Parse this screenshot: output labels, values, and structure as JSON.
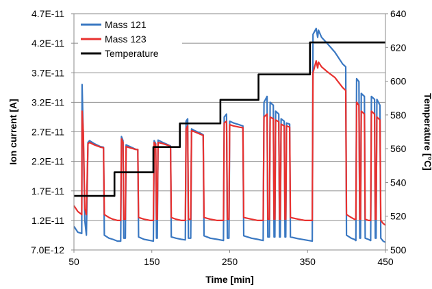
{
  "chart_data": {
    "type": "line",
    "title": "",
    "xlabel": "Time [min]",
    "ylabel": "Ion current [A]",
    "y2label": "Temperature [°C]",
    "xlim": [
      50,
      450
    ],
    "ylim": [
      7e-12,
      4.7e-11
    ],
    "y2lim": [
      500,
      640
    ],
    "x_ticks": [
      "50",
      "150",
      "250",
      "350",
      "450"
    ],
    "x_tick_values": [
      50,
      150,
      250,
      350,
      450
    ],
    "y_ticks": [
      "4.7E-11",
      "4.2E-11",
      "3.7E-11",
      "3.2E-11",
      "2.7E-11",
      "2.2E-11",
      "1.7E-11",
      "1.2E-11",
      "7.0E-12"
    ],
    "y_tick_values": [
      4.7e-11,
      4.2e-11,
      3.7e-11,
      3.2e-11,
      2.7e-11,
      2.2e-11,
      1.7e-11,
      1.2e-11,
      7e-12
    ],
    "y2_ticks": [
      "640",
      "620",
      "600",
      "580",
      "560",
      "540",
      "520",
      "500"
    ],
    "y2_tick_values": [
      640,
      620,
      600,
      580,
      560,
      540,
      520,
      500
    ],
    "grid": "horizontal",
    "legend": "top-left",
    "series": [
      {
        "name": "Mass 121",
        "axis": "left",
        "color": "#3a78c2",
        "points": [
          [
            50,
            1.1e-11
          ],
          [
            55,
            1e-11
          ],
          [
            60,
            9.8e-12
          ],
          [
            60.5,
            3.5e-11
          ],
          [
            62,
            2.6e-11
          ],
          [
            64,
            1.2e-11
          ],
          [
            66,
            9.5e-12
          ],
          [
            68,
            2.52e-11
          ],
          [
            70,
            2.55e-11
          ],
          [
            76,
            2.5e-11
          ],
          [
            84,
            2.45e-11
          ],
          [
            88,
            2.44e-11
          ],
          [
            89,
            9.5e-12
          ],
          [
            95,
            9e-12
          ],
          [
            100,
            8.8e-12
          ],
          [
            106,
            8.5e-12
          ],
          [
            110,
            8.5e-12
          ],
          [
            111,
            2.62e-11
          ],
          [
            113,
            2.55e-11
          ],
          [
            114,
            9e-12
          ],
          [
            116,
            9e-12
          ],
          [
            117,
            2.48e-11
          ],
          [
            122,
            2.45e-11
          ],
          [
            130,
            2.4e-11
          ],
          [
            132,
            2.4e-11
          ],
          [
            133,
            9.2e-12
          ],
          [
            140,
            8.8e-12
          ],
          [
            148,
            8.6e-12
          ],
          [
            152,
            8.5e-12
          ],
          [
            153,
            2.55e-11
          ],
          [
            155,
            2.5e-11
          ],
          [
            156,
            9e-12
          ],
          [
            157,
            9e-12
          ],
          [
            158,
            2.56e-11
          ],
          [
            164,
            2.52e-11
          ],
          [
            171,
            2.48e-11
          ],
          [
            174,
            2.46e-11
          ],
          [
            175,
            9.2e-12
          ],
          [
            181,
            9e-12
          ],
          [
            188,
            8.8e-12
          ],
          [
            193,
            8.7e-12
          ],
          [
            194,
            2.88e-11
          ],
          [
            196,
            2.92e-11
          ],
          [
            197,
            9e-12
          ],
          [
            200,
            9e-12
          ],
          [
            201,
            2.75e-11
          ],
          [
            205,
            2.72e-11
          ],
          [
            212,
            2.68e-11
          ],
          [
            216,
            2.65e-11
          ],
          [
            217,
            9.4e-12
          ],
          [
            225,
            9e-12
          ],
          [
            234,
            8.8e-12
          ],
          [
            242,
            8.6e-12
          ],
          [
            243,
            2.95e-11
          ],
          [
            246,
            3e-11
          ],
          [
            247,
            9e-12
          ],
          [
            249,
            9e-12
          ],
          [
            250,
            2.88e-11
          ],
          [
            255,
            2.85e-11
          ],
          [
            262,
            2.82e-11
          ],
          [
            267,
            2.8e-11
          ],
          [
            268,
            9.4e-12
          ],
          [
            278,
            9e-12
          ],
          [
            286,
            8.8e-12
          ],
          [
            293,
            8.6e-12
          ],
          [
            294,
            3.2e-11
          ],
          [
            298,
            3.3e-11
          ],
          [
            299,
            9.2e-12
          ],
          [
            301,
            9.2e-12
          ],
          [
            302,
            3.2e-11
          ],
          [
            306,
            3.15e-11
          ],
          [
            307,
            9.2e-12
          ],
          [
            308,
            9.2e-12
          ],
          [
            309,
            3.05e-11
          ],
          [
            313,
            3e-11
          ],
          [
            314,
            9.2e-12
          ],
          [
            315,
            9.2e-12
          ],
          [
            316,
            2.92e-11
          ],
          [
            320,
            2.88e-11
          ],
          [
            321,
            9.2e-12
          ],
          [
            322,
            9.2e-12
          ],
          [
            323,
            2.85e-11
          ],
          [
            327,
            2.83e-11
          ],
          [
            328,
            9.2e-12
          ],
          [
            338,
            8.9e-12
          ],
          [
            347,
            8.7e-12
          ],
          [
            356,
            8.5e-12
          ],
          [
            357,
            4.35e-11
          ],
          [
            361,
            4.45e-11
          ],
          [
            363,
            4.3e-11
          ],
          [
            364,
            4.42e-11
          ],
          [
            368,
            4.3e-11
          ],
          [
            375,
            4.2e-11
          ],
          [
            385,
            4.05e-11
          ],
          [
            395,
            3.85e-11
          ],
          [
            399,
            3.8e-11
          ],
          [
            400,
            9.5e-12
          ],
          [
            406,
            9e-12
          ],
          [
            410,
            8.8e-12
          ],
          [
            412,
            8.6e-12
          ],
          [
            413,
            3.6e-11
          ],
          [
            416,
            3.55e-11
          ],
          [
            417,
            9e-12
          ],
          [
            418,
            9e-12
          ],
          [
            419,
            3.35e-11
          ],
          [
            423,
            3.3e-11
          ],
          [
            424,
            9e-12
          ],
          [
            428,
            8.8e-12
          ],
          [
            431,
            8.6e-12
          ],
          [
            432,
            3.3e-11
          ],
          [
            436,
            3.25e-11
          ],
          [
            437,
            9e-12
          ],
          [
            438,
            9e-12
          ],
          [
            439,
            3.25e-11
          ],
          [
            443,
            3.15e-11
          ],
          [
            444,
            9e-12
          ],
          [
            447,
            8.5e-12
          ],
          [
            450,
            8.3e-12
          ]
        ]
      },
      {
        "name": "Mass 123",
        "axis": "left",
        "color": "#e8312f",
        "points": [
          [
            50,
            1.45e-11
          ],
          [
            55,
            1.35e-11
          ],
          [
            60,
            1.3e-11
          ],
          [
            60.5,
            3.05e-11
          ],
          [
            62,
            2.7e-11
          ],
          [
            64,
            1.4e-11
          ],
          [
            66,
            1.3e-11
          ],
          [
            68,
            2.5e-11
          ],
          [
            70,
            2.52e-11
          ],
          [
            76,
            2.48e-11
          ],
          [
            84,
            2.44e-11
          ],
          [
            88,
            2.43e-11
          ],
          [
            89,
            1.3e-11
          ],
          [
            95,
            1.25e-11
          ],
          [
            100,
            1.22e-11
          ],
          [
            106,
            1.2e-11
          ],
          [
            110,
            1.2e-11
          ],
          [
            111,
            2.58e-11
          ],
          [
            113,
            2.52e-11
          ],
          [
            114,
            1.22e-11
          ],
          [
            116,
            1.22e-11
          ],
          [
            117,
            2.45e-11
          ],
          [
            122,
            2.43e-11
          ],
          [
            130,
            2.4e-11
          ],
          [
            132,
            2.4e-11
          ],
          [
            133,
            1.25e-11
          ],
          [
            140,
            1.22e-11
          ],
          [
            148,
            1.2e-11
          ],
          [
            152,
            1.2e-11
          ],
          [
            153,
            2.52e-11
          ],
          [
            155,
            2.48e-11
          ],
          [
            156,
            1.22e-11
          ],
          [
            157,
            1.22e-11
          ],
          [
            158,
            2.52e-11
          ],
          [
            164,
            2.5e-11
          ],
          [
            171,
            2.47e-11
          ],
          [
            174,
            2.45e-11
          ],
          [
            175,
            1.25e-11
          ],
          [
            181,
            1.22e-11
          ],
          [
            188,
            1.2e-11
          ],
          [
            193,
            1.2e-11
          ],
          [
            194,
            2.75e-11
          ],
          [
            196,
            2.8e-11
          ],
          [
            197,
            1.22e-11
          ],
          [
            200,
            1.22e-11
          ],
          [
            201,
            2.72e-11
          ],
          [
            205,
            2.7e-11
          ],
          [
            212,
            2.66e-11
          ],
          [
            216,
            2.64e-11
          ],
          [
            217,
            1.25e-11
          ],
          [
            225,
            1.22e-11
          ],
          [
            234,
            1.2e-11
          ],
          [
            242,
            1.2e-11
          ],
          [
            243,
            2.85e-11
          ],
          [
            246,
            2.88e-11
          ],
          [
            247,
            1.22e-11
          ],
          [
            249,
            1.22e-11
          ],
          [
            250,
            2.82e-11
          ],
          [
            255,
            2.8e-11
          ],
          [
            262,
            2.78e-11
          ],
          [
            267,
            2.77e-11
          ],
          [
            268,
            1.25e-11
          ],
          [
            278,
            1.22e-11
          ],
          [
            286,
            1.2e-11
          ],
          [
            293,
            1.2e-11
          ],
          [
            294,
            2.95e-11
          ],
          [
            298,
            3e-11
          ],
          [
            299,
            1.22e-11
          ],
          [
            301,
            1.22e-11
          ],
          [
            302,
            2.95e-11
          ],
          [
            306,
            2.92e-11
          ],
          [
            307,
            1.22e-11
          ],
          [
            308,
            1.22e-11
          ],
          [
            309,
            2.9e-11
          ],
          [
            313,
            2.87e-11
          ],
          [
            314,
            1.22e-11
          ],
          [
            315,
            1.22e-11
          ],
          [
            316,
            2.83e-11
          ],
          [
            320,
            2.8e-11
          ],
          [
            321,
            1.22e-11
          ],
          [
            322,
            1.22e-11
          ],
          [
            323,
            2.8e-11
          ],
          [
            327,
            2.78e-11
          ],
          [
            328,
            1.25e-11
          ],
          [
            338,
            1.22e-11
          ],
          [
            347,
            1.2e-11
          ],
          [
            356,
            1.2e-11
          ],
          [
            357,
            3.7e-11
          ],
          [
            361,
            3.9e-11
          ],
          [
            363,
            3.78e-11
          ],
          [
            364,
            3.88e-11
          ],
          [
            368,
            3.8e-11
          ],
          [
            375,
            3.72e-11
          ],
          [
            385,
            3.62e-11
          ],
          [
            395,
            3.45e-11
          ],
          [
            399,
            3.4e-11
          ],
          [
            400,
            1.3e-11
          ],
          [
            406,
            1.25e-11
          ],
          [
            410,
            1.22e-11
          ],
          [
            412,
            1.22e-11
          ],
          [
            413,
            3.2e-11
          ],
          [
            416,
            3.15e-11
          ],
          [
            417,
            1.22e-11
          ],
          [
            418,
            1.22e-11
          ],
          [
            419,
            3.05e-11
          ],
          [
            423,
            3e-11
          ],
          [
            424,
            1.22e-11
          ],
          [
            428,
            1.2e-11
          ],
          [
            431,
            1.2e-11
          ],
          [
            432,
            3.05e-11
          ],
          [
            436,
            3e-11
          ],
          [
            437,
            1.22e-11
          ],
          [
            438,
            1.22e-11
          ],
          [
            439,
            2.95e-11
          ],
          [
            443,
            2.9e-11
          ],
          [
            444,
            1.2e-11
          ],
          [
            447,
            1.15e-11
          ],
          [
            450,
            1.12e-11
          ]
        ]
      },
      {
        "name": "Temperature",
        "axis": "right",
        "color": "#000000",
        "points": [
          [
            50,
            532
          ],
          [
            102,
            532
          ],
          [
            102,
            546
          ],
          [
            152,
            546
          ],
          [
            152,
            561
          ],
          [
            186,
            561
          ],
          [
            186,
            575
          ],
          [
            238,
            575
          ],
          [
            238,
            589
          ],
          [
            287,
            589
          ],
          [
            287,
            604
          ],
          [
            353,
            604
          ],
          [
            353,
            623
          ],
          [
            450,
            623
          ]
        ]
      }
    ]
  }
}
